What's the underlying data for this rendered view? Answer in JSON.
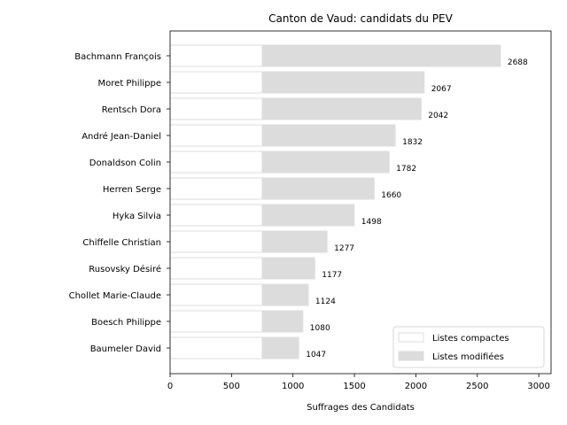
{
  "chart_data": {
    "type": "bar",
    "orientation": "horizontal",
    "stacked": true,
    "title": "Canton de Vaud: candidats du PEV",
    "xlabel": "Suffrages des Candidats",
    "ylabel": "",
    "xlim": [
      0,
      3100
    ],
    "xticks": [
      0,
      500,
      1000,
      1500,
      2000,
      2500,
      3000
    ],
    "grid": false,
    "legend_position": "lower-right",
    "categories": [
      "Bachmann François",
      "Moret Philippe",
      "Rentsch Dora",
      "André Jean-Daniel",
      "Donaldson Colin",
      "Herren Serge",
      "Hyka Silvia",
      "Chiffelle Christian",
      "Rusovsky Désiré",
      "Chollet Marie-Claude",
      "Boesch Philippe",
      "Baumeler David"
    ],
    "totals": [
      2688,
      2067,
      2042,
      1832,
      1782,
      1660,
      1498,
      1277,
      1177,
      1124,
      1080,
      1047
    ],
    "series": [
      {
        "name": "Listes compactes",
        "color": "#ffffff",
        "edge_color": "#dddddd",
        "values": [
          750,
          750,
          750,
          750,
          750,
          750,
          750,
          750,
          750,
          750,
          750,
          750
        ]
      },
      {
        "name": "Listes modifiées",
        "color": "#dcdcdc",
        "edge_color": "#dcdcdc",
        "values": [
          1938,
          1317,
          1292,
          1082,
          1032,
          910,
          748,
          527,
          427,
          374,
          330,
          297
        ]
      }
    ]
  }
}
